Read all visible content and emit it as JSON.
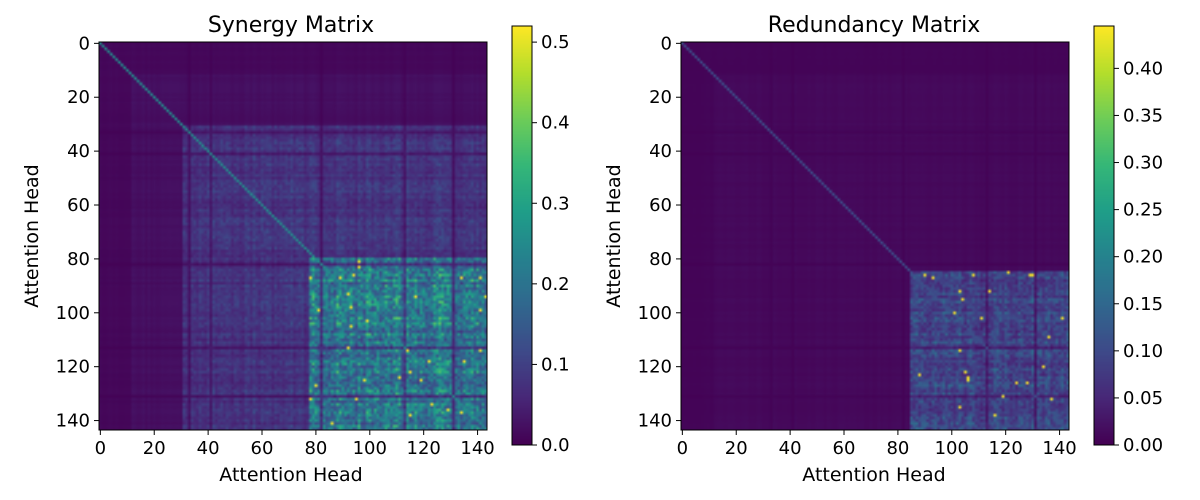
{
  "chart_data": [
    {
      "type": "heatmap",
      "title": "Synergy Matrix",
      "xlabel": "Attention Head",
      "ylabel": "Attention Head",
      "size": 144,
      "xlim": [
        0,
        143
      ],
      "ylim": [
        143,
        0
      ],
      "x_ticks": [
        "0",
        "20",
        "40",
        "60",
        "80",
        "100",
        "120",
        "140"
      ],
      "y_ticks": [
        "0",
        "20",
        "40",
        "60",
        "80",
        "100",
        "120",
        "140"
      ],
      "colormap": "viridis",
      "colorbar": {
        "min": 0.0,
        "max": 0.52,
        "ticks": [
          0.0,
          0.1,
          0.2,
          0.3,
          0.4,
          0.5
        ],
        "tick_labels": [
          "0.0",
          "0.1",
          "0.2",
          "0.3",
          "0.4",
          "0.5"
        ]
      },
      "description_values": {
        "background_low": 0.02,
        "mid_region": 0.1,
        "high_block_rows": [
          80,
          143
        ],
        "high_block_cols": [
          78,
          143
        ],
        "high_block_value": 0.28,
        "peak_value": 0.52
      }
    },
    {
      "type": "heatmap",
      "title": "Redundancy Matrix",
      "xlabel": "Attention Head",
      "ylabel": "Attention Head",
      "size": 144,
      "xlim": [
        0,
        143
      ],
      "ylim": [
        143,
        0
      ],
      "x_ticks": [
        "0",
        "20",
        "40",
        "60",
        "80",
        "100",
        "120",
        "140"
      ],
      "y_ticks": [
        "0",
        "20",
        "40",
        "60",
        "80",
        "100",
        "120",
        "140"
      ],
      "colormap": "viridis",
      "colorbar": {
        "min": 0.0,
        "max": 0.445,
        "ticks": [
          0.0,
          0.05,
          0.1,
          0.15,
          0.2,
          0.25,
          0.3,
          0.35,
          0.4
        ],
        "tick_labels": [
          "0.00",
          "0.05",
          "0.10",
          "0.15",
          "0.20",
          "0.25",
          "0.30",
          "0.35",
          "0.40"
        ]
      },
      "description_values": {
        "background_low": 0.01,
        "high_block_rows": [
          85,
          143
        ],
        "high_block_cols": [
          85,
          143
        ],
        "high_block_value": 0.12,
        "peak_value": 0.445
      }
    }
  ]
}
